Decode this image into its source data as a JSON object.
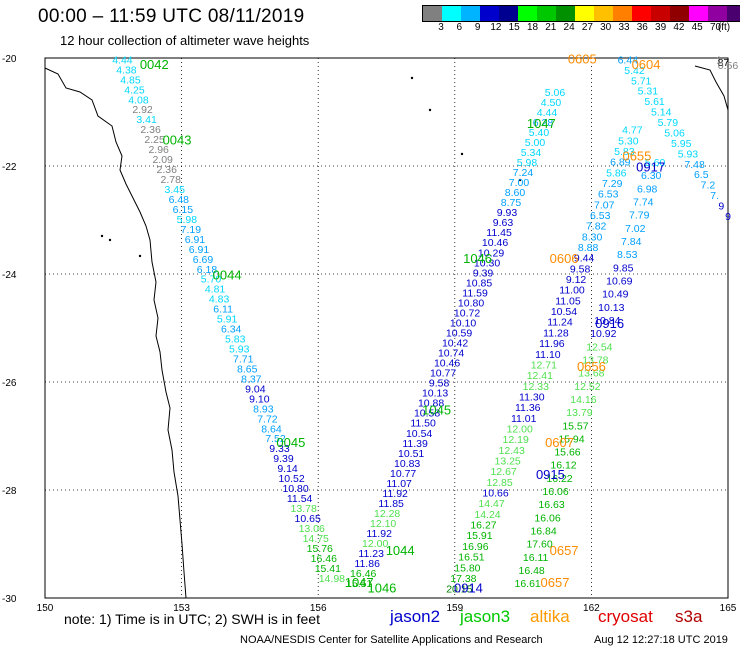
{
  "header": {
    "title": "00:00 – 11:59 UTC 08/11/2019",
    "subtitle": "12 hour collection of altimeter wave heights"
  },
  "color_scale": {
    "colors": [
      "#808080",
      "#00ffff",
      "#00b4ff",
      "#0000cd",
      "#000090",
      "#00ff00",
      "#00c800",
      "#009000",
      "#ffff00",
      "#ffc000",
      "#ff8000",
      "#ff0000",
      "#c80000",
      "#900000",
      "#ff00ff",
      "#9000a0",
      "#4b0070",
      "#000000"
    ],
    "labels": [
      "3",
      "6",
      "9",
      "12",
      "15",
      "18",
      "21",
      "24",
      "27",
      "30",
      "33",
      "36",
      "39",
      "42",
      "45",
      "70"
    ],
    "unit": "(ft)"
  },
  "axes": {
    "x_ticks": [
      "150",
      "153",
      "156",
      "159",
      "162",
      "165"
    ],
    "y_ticks": [
      "-20",
      "-22",
      "-24",
      "-26",
      "-28",
      "-30"
    ]
  },
  "chart_data": {
    "type": "map",
    "extent": {
      "lon": [
        150,
        165
      ],
      "lat": [
        -30,
        -20
      ]
    },
    "grid": true,
    "tracks": [
      {
        "name": "jason3",
        "color": "#00b400",
        "start": {
          "lon": 151.7,
          "lat": -20.1
        },
        "end": {
          "lon": 156.3,
          "lat": -29.7
        },
        "values": [
          "4.44",
          "4.38",
          "4.85",
          "4.25",
          "4.08",
          "2.92",
          "3.41",
          "2.36",
          "2.25",
          "2.96",
          "2.09",
          "2.36",
          "2.78",
          "3.45",
          "6.48",
          "6.15",
          "5.98",
          "7.19",
          "6.91",
          "6.91",
          "6.69",
          "6.18",
          "5.70",
          "4.81",
          "4.83",
          "6.11",
          "5.91",
          "6.34",
          "5.83",
          "5.93",
          "7.71",
          "8.65",
          "8.37",
          "9.04",
          "9.10",
          "8.93",
          "7.72",
          "8.64",
          "7.52",
          "9.33",
          "9.39",
          "9.14",
          "10.52",
          "10.80",
          "11.54",
          "13.78",
          "10.65",
          "13.06",
          "14.75",
          "15.76",
          "16.46",
          "15.41",
          "14.98"
        ],
        "times": [
          {
            "label": "0042",
            "lon": 152.4,
            "lat": -20.2
          },
          {
            "label": "0043",
            "lon": 152.9,
            "lat": -21.6
          },
          {
            "label": "0044",
            "lon": 154.0,
            "lat": -24.1
          },
          {
            "label": "0045",
            "lon": 155.4,
            "lat": -27.2
          }
        ]
      },
      {
        "name": "jason3",
        "color": "#00b400",
        "start": {
          "lon": 156.9,
          "lat": -29.8
        },
        "end": {
          "lon": 161.2,
          "lat": -20.7
        },
        "values": [
          "15.51",
          "16.46",
          "11.86",
          "11.23",
          "12.00",
          "11.92",
          "12.10",
          "12.28",
          "11.85",
          "11.92",
          "11.07",
          "10.77",
          "10.83",
          "10.51",
          "11.39",
          "10.54",
          "11.50",
          "10.58",
          "10.88",
          "10.13",
          "9.58",
          "10.77",
          "10.46",
          "10.74",
          "10.42",
          "10.59",
          "10.10",
          "10.72",
          "10.80",
          "11.59",
          "10.85",
          "9.39",
          "10.30",
          "10.29",
          "10.46",
          "11.45",
          "9.63",
          "9.93",
          "8.75",
          "8.60",
          "7.00",
          "7.24",
          "5.98",
          "5.34",
          "5.00",
          "5.40",
          "6.28",
          "4.44",
          "4.50",
          "5.06"
        ],
        "times": [
          {
            "label": "1044",
            "lon": 157.8,
            "lat": -29.2
          },
          {
            "label": "1045",
            "lon": 158.6,
            "lat": -26.6
          },
          {
            "label": "1046",
            "lon": 159.5,
            "lat": -23.8
          },
          {
            "label": "1047",
            "lon": 160.9,
            "lat": -21.3
          },
          {
            "label": "1047",
            "lon": 156.9,
            "lat": -29.8
          },
          {
            "label": "1046",
            "lon": 157.4,
            "lat": -29.9
          }
        ]
      },
      {
        "name": "jason2",
        "color": "#0000cd",
        "start": {
          "lon": 159.1,
          "lat": -29.9
        },
        "end": {
          "lon": 162.9,
          "lat": -21.4
        },
        "values": [
          "20.15",
          "17.38",
          "15.80",
          "16.51",
          "16.96",
          "15.91",
          "16.27",
          "14.24",
          "14.47",
          "10.66",
          "12.85",
          "12.67",
          "13.25",
          "12.43",
          "12.19",
          "12.00",
          "11.01",
          "11.36",
          "11.30",
          "12.33",
          "12.41",
          "12.71",
          "11.10",
          "11.96",
          "11.28",
          "11.24",
          "10.54",
          "11.05",
          "11.00",
          "9.12",
          "9.58",
          "9.44",
          "8.88",
          "8.30",
          "7.82",
          "6.53",
          "7.07",
          "6.53",
          "7.29",
          "5.86",
          "6.89",
          "5.83",
          "5.30",
          "4.77"
        ],
        "times": [
          {
            "label": "0914",
            "lon": 159.3,
            "lat": -29.9
          },
          {
            "label": "0915",
            "lon": 161.1,
            "lat": -27.8
          },
          {
            "label": "0916",
            "lon": 162.4,
            "lat": -25.0
          },
          {
            "label": "0917",
            "lon": 163.3,
            "lat": -22.1
          }
        ]
      },
      {
        "name": "jason3",
        "color": "#00b400",
        "start": {
          "lon": 160.6,
          "lat": -29.8
        },
        "end": {
          "lon": 163.4,
          "lat": -22.0
        },
        "values": [
          "16.61",
          "16.48",
          "16.11",
          "17.60",
          "16.84",
          "16.06",
          "16.63",
          "16.06",
          "16.22",
          "16.12",
          "15.66",
          "15.94",
          "15.57",
          "13.79",
          "14.16",
          "12.52",
          "13.68",
          "13.78",
          "12.54",
          "10.92",
          "10.84",
          "10.13",
          "10.49",
          "10.69",
          "9.85",
          "8.53",
          "7.84",
          "7.02",
          "7.79",
          "7.74",
          "6.98",
          "6.30",
          "5.60"
        ],
        "times": []
      },
      {
        "name": "altika",
        "color": "#ff8c00",
        "start": {
          "lon": 162.8,
          "lat": -20.1
        },
        "end": {
          "lon": 165,
          "lat": -23.0
        },
        "values": [
          "6.44",
          "5.42",
          "5.71",
          "5.31",
          "5.61",
          "5.14",
          "5.79",
          "5.06",
          "5.95",
          "5.93",
          "7.48",
          "6.5",
          "7.2",
          "7.",
          "9",
          "9"
        ],
        "times": [
          {
            "label": "0604",
            "lon": 163.2,
            "lat": -20.2
          },
          {
            "label": "0605",
            "lon": 161.8,
            "lat": -20.1
          },
          {
            "label": "0606",
            "lon": 161.4,
            "lat": -23.8
          },
          {
            "label": "0655",
            "lon": 163.0,
            "lat": -21.9
          },
          {
            "label": "0656",
            "lon": 162.0,
            "lat": -25.8
          },
          {
            "label": "0607",
            "lon": 161.3,
            "lat": -27.2
          },
          {
            "label": "0657",
            "lon": 161.4,
            "lat": -29.2
          },
          {
            "label": "0657",
            "lon": 161.2,
            "lat": -29.8
          }
        ]
      },
      {
        "name": "s3a",
        "color": "#c80000",
        "start": {
          "lon": 164.8,
          "lat": -20.1
        },
        "end": {
          "lon": 165,
          "lat": -20.2
        },
        "values": [
          "1",
          "87",
          "0.56"
        ],
        "times": []
      }
    ]
  },
  "legend": {
    "note": "note: 1) Time is in UTC; 2) SWH is in feet",
    "satellites": [
      {
        "name": "jason2",
        "color": "#0000cd"
      },
      {
        "name": "jason3",
        "color": "#00c800"
      },
      {
        "name": "altika",
        "color": "#ff9900"
      },
      {
        "name": "cryosat",
        "color": "#e00000"
      },
      {
        "name": "s3a",
        "color": "#b00000"
      }
    ]
  },
  "footer": {
    "credit": "NOAA/NESDIS Center for Satellite Applications and Research",
    "timestamp": "Aug 12 12:27:18 UTC 2019"
  }
}
